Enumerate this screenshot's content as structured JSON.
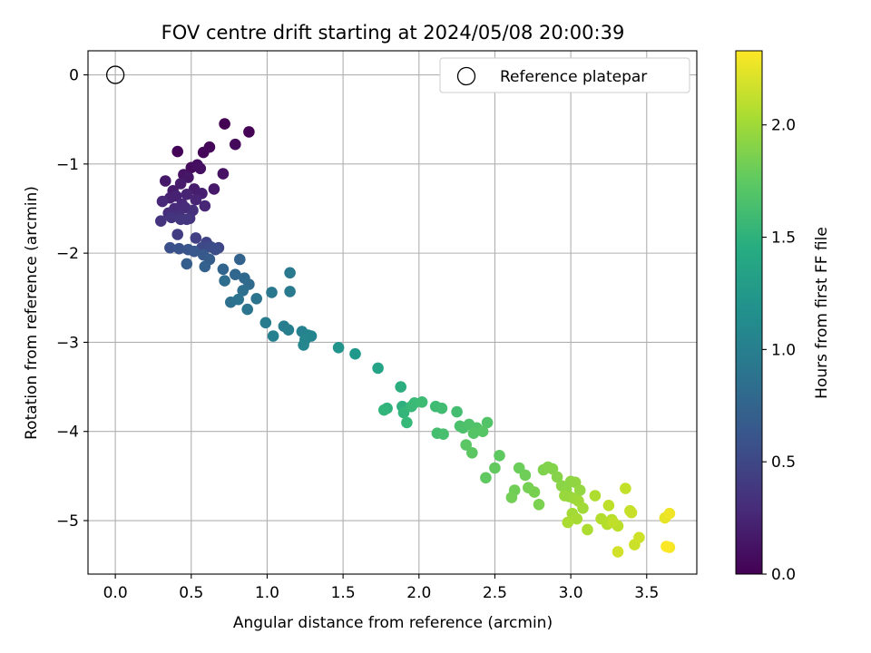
{
  "chart_data": {
    "type": "scatter",
    "title": "FOV centre drift starting at 2024/05/08 20:00:39",
    "xlabel": "Angular distance from reference (arcmin)",
    "ylabel": "Rotation from reference (arcmin)",
    "xlim": [
      -0.18,
      3.83
    ],
    "ylim": [
      -5.6,
      0.27
    ],
    "x_ticks": [
      0.0,
      0.5,
      1.0,
      1.5,
      2.0,
      2.5,
      3.0,
      3.5
    ],
    "x_tick_labels": [
      "0.0",
      "0.5",
      "1.0",
      "1.5",
      "2.0",
      "2.5",
      "3.0",
      "3.5"
    ],
    "y_ticks": [
      0,
      -1,
      -2,
      -3,
      -4,
      -5
    ],
    "y_tick_labels": [
      "0",
      "−1",
      "−2",
      "−3",
      "−4",
      "−5"
    ],
    "grid": true,
    "legend": {
      "placement": "top-right",
      "entries": [
        "Reference platepar"
      ]
    },
    "reference_point": {
      "label": "Reference platepar",
      "x": 0.0,
      "y": 0.0
    },
    "colorbar": {
      "label": "Hours from first FF file",
      "colormap": "viridis",
      "range": [
        0.0,
        2.33
      ],
      "ticks": [
        0.0,
        0.5,
        1.0,
        1.5,
        2.0
      ],
      "tick_labels": [
        "0.0",
        "0.5",
        "1.0",
        "1.5",
        "2.0"
      ]
    },
    "series": [
      {
        "x": [
          0.72,
          0.88,
          0.41,
          0.58,
          0.62,
          0.79,
          0.5,
          0.54,
          0.56,
          0.71,
          0.45,
          0.48,
          0.33,
          0.65,
          0.38,
          0.43,
          0.52,
          0.57,
          0.36,
          0.4,
          0.47,
          0.53,
          0.59,
          0.31,
          0.44,
          0.39,
          0.46,
          0.35,
          0.51,
          0.42,
          0.49,
          0.3,
          0.37,
          0.43,
          0.47,
          0.41,
          0.53,
          0.6,
          0.68,
          0.57,
          0.63,
          0.66,
          0.36,
          0.42,
          0.48,
          0.52,
          0.58,
          0.62,
          0.47,
          0.59,
          0.82,
          0.71,
          0.79,
          0.85,
          0.88,
          0.72,
          0.84,
          0.76,
          0.81,
          0.93,
          0.87,
          1.03,
          1.15,
          1.15,
          0.99,
          1.11,
          1.14,
          1.04,
          1.23,
          1.27,
          1.29,
          1.25,
          1.24,
          1.47,
          1.58,
          1.73,
          1.88,
          1.89,
          1.79,
          1.77,
          1.9,
          1.92,
          1.95,
          1.97,
          2.02,
          2.11,
          2.15,
          2.25,
          2.12,
          2.16,
          2.27,
          2.29,
          2.33,
          2.38,
          2.45,
          2.36,
          2.42,
          2.31,
          2.35,
          2.53,
          2.44,
          2.5,
          2.66,
          2.7,
          2.63,
          2.61,
          2.72,
          2.76,
          2.79,
          2.82,
          2.85,
          2.88,
          2.91,
          2.94,
          2.97,
          3.0,
          3.03,
          3.06,
          2.99,
          2.96,
          3.02,
          3.05,
          3.08,
          3.01,
          3.04,
          2.98,
          3.11,
          3.16,
          3.2,
          3.24,
          3.27,
          3.31,
          3.25,
          3.28,
          3.36,
          3.39,
          3.4,
          3.42,
          3.45,
          3.31,
          3.62,
          3.65,
          3.65,
          3.63
        ],
        "y": [
          -0.55,
          -0.64,
          -0.86,
          -0.87,
          -0.81,
          -0.78,
          -1.04,
          -1.01,
          -1.05,
          -1.11,
          -1.12,
          -1.15,
          -1.19,
          -1.28,
          -1.3,
          -1.22,
          -1.28,
          -1.33,
          -1.38,
          -1.36,
          -1.34,
          -1.4,
          -1.47,
          -1.42,
          -1.45,
          -1.5,
          -1.49,
          -1.55,
          -1.52,
          -1.58,
          -1.61,
          -1.64,
          -1.6,
          -1.62,
          -1.62,
          -1.79,
          -1.83,
          -1.88,
          -1.94,
          -1.94,
          -1.93,
          -1.96,
          -1.94,
          -1.95,
          -1.96,
          -1.98,
          -2.02,
          -2.07,
          -2.12,
          -2.15,
          -2.07,
          -2.18,
          -2.24,
          -2.28,
          -2.35,
          -2.31,
          -2.42,
          -2.55,
          -2.52,
          -2.51,
          -2.63,
          -2.44,
          -2.22,
          -2.43,
          -2.78,
          -2.82,
          -2.86,
          -2.93,
          -2.88,
          -2.92,
          -2.93,
          -2.97,
          -3.03,
          -3.06,
          -3.13,
          -3.29,
          -3.5,
          -3.72,
          -3.74,
          -3.76,
          -3.79,
          -3.9,
          -3.72,
          -3.68,
          -3.67,
          -3.72,
          -3.74,
          -3.78,
          -4.02,
          -4.03,
          -3.94,
          -3.96,
          -3.92,
          -3.96,
          -3.9,
          -4.02,
          -4.0,
          -4.15,
          -4.24,
          -4.27,
          -4.52,
          -4.41,
          -4.41,
          -4.49,
          -4.66,
          -4.74,
          -4.63,
          -4.68,
          -4.82,
          -4.43,
          -4.4,
          -4.42,
          -4.51,
          -4.61,
          -4.65,
          -4.56,
          -4.57,
          -4.66,
          -4.73,
          -4.72,
          -4.75,
          -4.78,
          -4.86,
          -4.92,
          -4.98,
          -5.02,
          -5.1,
          -4.72,
          -4.98,
          -5.04,
          -4.99,
          -5.06,
          -4.83,
          -5.02,
          -4.64,
          -4.89,
          -4.91,
          -5.27,
          -5.19,
          -5.35,
          -4.97,
          -4.92,
          -5.3,
          -5.29
        ],
        "c": [
          0.0,
          0.01,
          0.02,
          0.03,
          0.04,
          0.05,
          0.07,
          0.08,
          0.1,
          0.11,
          0.12,
          0.14,
          0.15,
          0.16,
          0.17,
          0.18,
          0.19,
          0.2,
          0.21,
          0.22,
          0.23,
          0.24,
          0.25,
          0.26,
          0.27,
          0.28,
          0.29,
          0.3,
          0.31,
          0.32,
          0.33,
          0.34,
          0.35,
          0.36,
          0.37,
          0.42,
          0.44,
          0.47,
          0.49,
          0.51,
          0.53,
          0.55,
          0.57,
          0.59,
          0.61,
          0.63,
          0.65,
          0.67,
          0.69,
          0.71,
          0.73,
          0.75,
          0.77,
          0.79,
          0.81,
          0.83,
          0.85,
          0.87,
          0.89,
          0.9,
          0.91,
          0.93,
          0.95,
          0.96,
          0.98,
          1.0,
          1.01,
          1.02,
          1.04,
          1.05,
          1.06,
          1.07,
          1.08,
          1.2,
          1.25,
          1.35,
          1.45,
          1.48,
          1.5,
          1.52,
          1.54,
          1.56,
          1.57,
          1.58,
          1.59,
          1.6,
          1.61,
          1.62,
          1.63,
          1.64,
          1.65,
          1.66,
          1.67,
          1.68,
          1.69,
          1.7,
          1.71,
          1.72,
          1.73,
          1.74,
          1.75,
          1.76,
          1.8,
          1.81,
          1.82,
          1.83,
          1.84,
          1.85,
          1.86,
          1.87,
          1.88,
          1.89,
          1.9,
          1.91,
          1.92,
          1.93,
          1.94,
          1.95,
          1.96,
          1.97,
          1.98,
          1.99,
          2.0,
          2.01,
          2.02,
          2.03,
          2.04,
          2.05,
          2.06,
          2.07,
          2.08,
          2.09,
          2.1,
          2.11,
          2.12,
          2.13,
          2.14,
          2.15,
          2.16,
          2.17,
          2.25,
          2.28,
          2.3,
          2.32
        ]
      }
    ]
  }
}
